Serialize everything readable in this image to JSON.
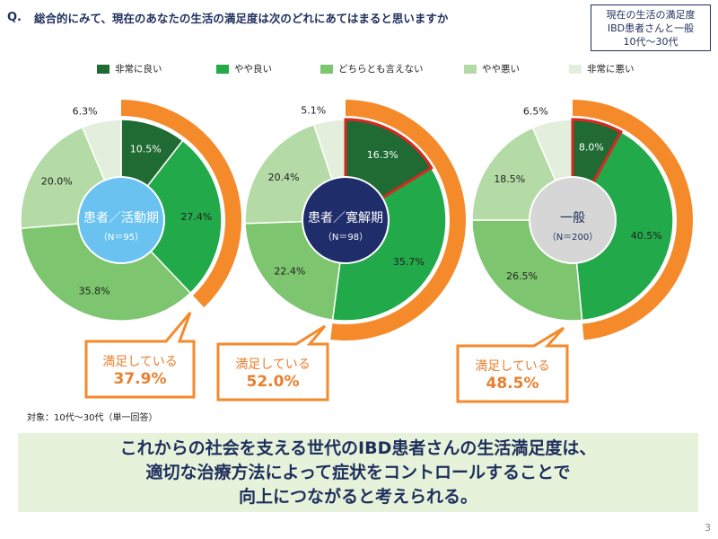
{
  "question": {
    "mark": "Q.",
    "text": "総合的にみて、現在のあなたの生活の満足度は次のどれにあてはまると思いますか"
  },
  "topbox": {
    "line1": "現在の生活の満足度",
    "line2": "IBD患者さんと一般",
    "line3": "10代～30代"
  },
  "legend": [
    {
      "label": "非常に良い",
      "color": "#1f6b33"
    },
    {
      "label": "やや良い",
      "color": "#22a94a"
    },
    {
      "label": "どちらとも言えない",
      "color": "#7dc56e"
    },
    {
      "label": "やや悪い",
      "color": "#b4dba5"
    },
    {
      "label": "非常に悪い",
      "color": "#e3efdc"
    }
  ],
  "chart_data": [
    {
      "type": "pie",
      "center_label": "患者／活動期",
      "center_sub": "（N＝95）",
      "categories": [
        "非常に良い",
        "やや良い",
        "どちらとも言えない",
        "やや悪い",
        "非常に悪い"
      ],
      "values": [
        10.5,
        27.4,
        35.8,
        20.0,
        6.3
      ],
      "labels": [
        "10.5%",
        "27.4%",
        "35.8%",
        "20.0%",
        "6.3%"
      ],
      "center_color": "#69c2f0",
      "center_text_color": "#ffffff",
      "highlight_top": false,
      "satisfied_label": "満足している",
      "satisfied_value": "37.9%",
      "satisfied_pct": 37.9
    },
    {
      "type": "pie",
      "center_label": "患者／寛解期",
      "center_sub": "（N＝98）",
      "categories": [
        "非常に良い",
        "やや良い",
        "どちらとも言えない",
        "やや悪い",
        "非常に悪い"
      ],
      "values": [
        16.3,
        35.7,
        22.4,
        20.4,
        5.1
      ],
      "labels": [
        "16.3%",
        "35.7%",
        "22.4%",
        "20.4%",
        "5.1%"
      ],
      "center_color": "#1f2d6b",
      "center_text_color": "#ffffff",
      "highlight_top": true,
      "satisfied_label": "満足している",
      "satisfied_value": "52.0%",
      "satisfied_pct": 52.0
    },
    {
      "type": "pie",
      "center_label": "一般",
      "center_sub": "（N＝200）",
      "categories": [
        "非常に良い",
        "やや良い",
        "どちらとも言えない",
        "やや悪い",
        "非常に悪い"
      ],
      "values": [
        8.0,
        40.5,
        26.5,
        18.5,
        6.5
      ],
      "labels": [
        "8.0%",
        "40.5%",
        "26.5%",
        "18.5%",
        "6.5%"
      ],
      "center_color": "#d6d6d6",
      "center_text_color": "#1f2f5c",
      "highlight_top": true,
      "satisfied_label": "満足している",
      "satisfied_value": "48.5%",
      "satisfied_pct": 48.5
    }
  ],
  "colors": {
    "accent_orange": "#f58a2b",
    "highlight_border": "#d42a22",
    "navy": "#1f2f5c"
  },
  "footnote": "対象：10代～30代（単一回答）",
  "conclusion": {
    "line1": "これからの社会を支える世代のIBD患者さんの生活満足度は、",
    "line2": "適切な治療方法によって症状をコントロールすることで",
    "line3": "向上につながると考えられる。"
  },
  "page_number": "3"
}
